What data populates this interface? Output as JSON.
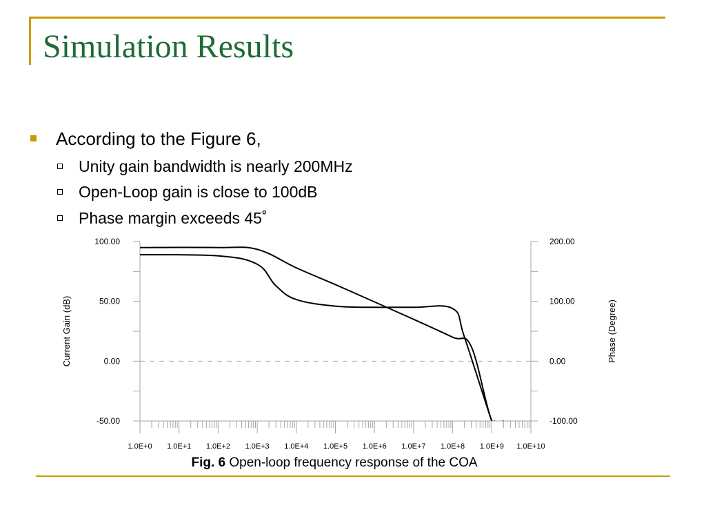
{
  "slide": {
    "title": "Simulation Results",
    "bullets": {
      "main": "According to the Figure 6,",
      "sub": [
        "Unity gain bandwidth is nearly 200MHz",
        "Open-Loop gain is close to 100dB",
        "Phase margin exceeds 45˚"
      ]
    },
    "caption_prefix": "Fig. 6",
    "caption_text": " Open-loop frequency response of the COA"
  },
  "colors": {
    "accent": "#cc9900",
    "title": "#1e6b35"
  },
  "chart_data": {
    "type": "line",
    "x_scale": "log",
    "xlim": [
      1,
      10000000000
    ],
    "x_ticks": [
      "1.0E+0",
      "1.0E+1",
      "1.0E+2",
      "1.0E+3",
      "1.0E+4",
      "1.0E+5",
      "1.0E+6",
      "1.0E+7",
      "1.0E+8",
      "1.0E+9",
      "1.0E+10"
    ],
    "y_left": {
      "label": "Current Gain (dB)",
      "lim": [
        -50,
        100
      ],
      "ticks": [
        "100.00",
        "50.00",
        "0.00",
        "-50.00"
      ]
    },
    "y_right": {
      "label": "Phase (Degree)",
      "lim": [
        -100,
        200
      ],
      "ticks": [
        "200.00",
        "100.00",
        "0.00",
        "-100.00"
      ]
    },
    "grid": false,
    "zero_line": "dashed",
    "series": [
      {
        "axis": "left",
        "x": [
          1,
          100,
          1000,
          10000,
          100000,
          1000000,
          10000000,
          100000000,
          300000000,
          1000000000,
          2000000000
        ],
        "y": [
          95,
          95,
          93.5,
          78,
          64,
          49.5,
          35,
          20,
          12,
          -50,
          -50
        ]
      },
      {
        "axis": "right",
        "x": [
          1,
          100,
          1000,
          3000,
          10000,
          100000,
          1000000,
          10000000,
          100000000,
          200000000,
          1000000000,
          1200000000
        ],
        "y": [
          178,
          176,
          162,
          126,
          103,
          92,
          90,
          90,
          88,
          40,
          -100,
          -100
        ]
      }
    ]
  }
}
